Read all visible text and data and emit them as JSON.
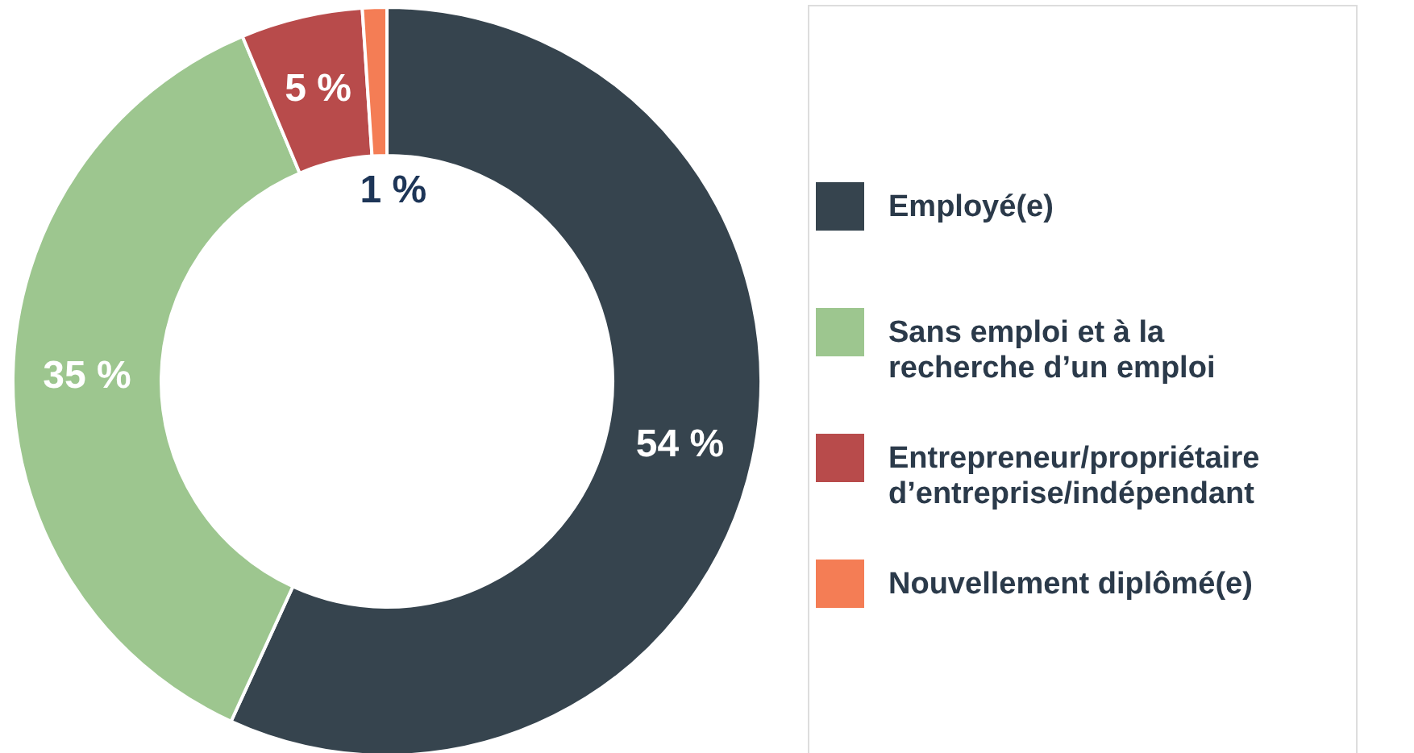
{
  "chart_data": {
    "type": "donut",
    "categories": [
      "Employé(e)",
      "Sans emploi et à la recherche d’un emploi",
      "Entrepreneur/propriétaire d’entreprise/indépendant",
      "Nouvellement diplômé(e)"
    ],
    "values": [
      54,
      35,
      5,
      1
    ],
    "colors": [
      "#36444e",
      "#9dc68f",
      "#b84b4b",
      "#f47d55"
    ],
    "value_labels": [
      "54 %",
      "35 %",
      "5 %",
      "1 %"
    ],
    "legend": "right"
  }
}
